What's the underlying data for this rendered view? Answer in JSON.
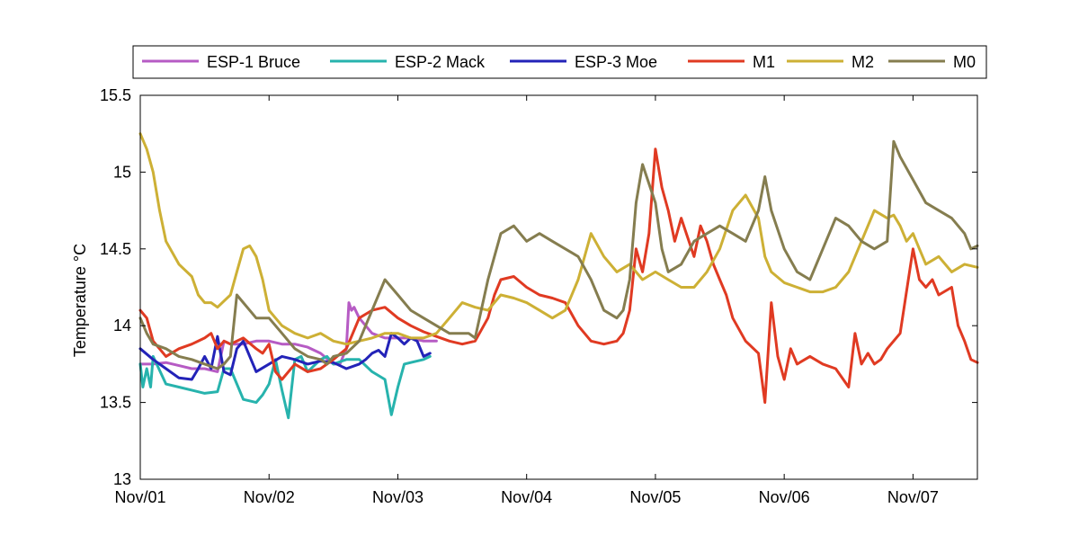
{
  "chart_data": {
    "type": "line",
    "title": "",
    "xlabel": "",
    "ylabel": "Temperature °C",
    "xlim": [
      0,
      6.5
    ],
    "ylim": [
      13,
      15.5
    ],
    "x_ticks": [
      0,
      1,
      2,
      3,
      4,
      5,
      6
    ],
    "x_tick_labels": [
      "Nov/01",
      "Nov/02",
      "Nov/03",
      "Nov/04",
      "Nov/05",
      "Nov/06",
      "Nov/07"
    ],
    "y_ticks": [
      13,
      13.5,
      14,
      14.5,
      15,
      15.5
    ],
    "y_tick_labels": [
      "13",
      "13.5",
      "14",
      "14.5",
      "15",
      "15.5"
    ],
    "grid": false,
    "legend_position": "top-horizontal",
    "series": [
      {
        "name": "ESP-1 Bruce",
        "color": "#b65bc4",
        "x": [
          0.0,
          0.1,
          0.2,
          0.3,
          0.4,
          0.5,
          0.6,
          0.65,
          0.7,
          0.8,
          0.9,
          1.0,
          1.1,
          1.2,
          1.3,
          1.4,
          1.5,
          1.55,
          1.6,
          1.62,
          1.64,
          1.66,
          1.7,
          1.8,
          1.9,
          2.0,
          2.1,
          2.2,
          2.3
        ],
        "y": [
          13.75,
          13.75,
          13.76,
          13.74,
          13.72,
          13.72,
          13.7,
          13.9,
          13.88,
          13.88,
          13.9,
          13.9,
          13.88,
          13.88,
          13.86,
          13.82,
          13.75,
          13.75,
          13.85,
          14.15,
          14.1,
          14.12,
          14.05,
          13.95,
          13.92,
          13.92,
          13.92,
          13.9,
          13.9
        ]
      },
      {
        "name": "ESP-2 Mack",
        "color": "#27b3ad",
        "x": [
          0.0,
          0.02,
          0.05,
          0.08,
          0.1,
          0.2,
          0.3,
          0.4,
          0.5,
          0.6,
          0.65,
          0.7,
          0.8,
          0.9,
          0.95,
          1.0,
          1.05,
          1.1,
          1.15,
          1.2,
          1.25,
          1.3,
          1.4,
          1.45,
          1.5,
          1.6,
          1.7,
          1.8,
          1.9,
          1.95,
          2.0,
          2.05,
          2.1,
          2.2,
          2.25
        ],
        "y": [
          13.75,
          13.6,
          13.72,
          13.6,
          13.8,
          13.62,
          13.6,
          13.58,
          13.56,
          13.57,
          13.72,
          13.72,
          13.52,
          13.5,
          13.55,
          13.62,
          13.78,
          13.58,
          13.4,
          13.78,
          13.8,
          13.7,
          13.78,
          13.8,
          13.75,
          13.78,
          13.78,
          13.7,
          13.65,
          13.42,
          13.6,
          13.75,
          13.76,
          13.78,
          13.8
        ]
      },
      {
        "name": "ESP-3 Moe",
        "color": "#2323b8",
        "x": [
          0.0,
          0.1,
          0.2,
          0.3,
          0.4,
          0.45,
          0.5,
          0.55,
          0.6,
          0.65,
          0.7,
          0.75,
          0.8,
          0.9,
          1.0,
          1.1,
          1.2,
          1.3,
          1.4,
          1.5,
          1.6,
          1.7,
          1.75,
          1.8,
          1.85,
          1.9,
          1.95,
          2.0,
          2.05,
          2.1,
          2.15,
          2.2,
          2.25
        ],
        "y": [
          13.85,
          13.78,
          13.72,
          13.66,
          13.65,
          13.72,
          13.8,
          13.72,
          13.93,
          13.7,
          13.68,
          13.85,
          13.9,
          13.7,
          13.75,
          13.8,
          13.78,
          13.75,
          13.77,
          13.76,
          13.72,
          13.75,
          13.78,
          13.82,
          13.84,
          13.8,
          13.95,
          13.92,
          13.88,
          13.92,
          13.9,
          13.8,
          13.82
        ]
      },
      {
        "name": "M1",
        "color": "#e03a22",
        "x": [
          0.0,
          0.05,
          0.1,
          0.2,
          0.3,
          0.4,
          0.5,
          0.55,
          0.6,
          0.65,
          0.7,
          0.8,
          0.9,
          0.95,
          1.0,
          1.05,
          1.1,
          1.2,
          1.3,
          1.4,
          1.5,
          1.6,
          1.7,
          1.8,
          1.9,
          2.0,
          2.1,
          2.2,
          2.3,
          2.4,
          2.5,
          2.6,
          2.7,
          2.75,
          2.8,
          2.9,
          3.0,
          3.1,
          3.2,
          3.3,
          3.4,
          3.5,
          3.6,
          3.7,
          3.75,
          3.8,
          3.85,
          3.9,
          3.95,
          4.0,
          4.05,
          4.1,
          4.15,
          4.2,
          4.3,
          4.35,
          4.4,
          4.45,
          4.5,
          4.55,
          4.6,
          4.7,
          4.8,
          4.85,
          4.9,
          4.95,
          5.0,
          5.05,
          5.1,
          5.2,
          5.3,
          5.4,
          5.5,
          5.55,
          5.6,
          5.65,
          5.7,
          5.75,
          5.8,
          5.9,
          6.0,
          6.05,
          6.1,
          6.15,
          6.2,
          6.3,
          6.35,
          6.4,
          6.45,
          6.5
        ],
        "y": [
          14.1,
          14.05,
          13.9,
          13.8,
          13.85,
          13.88,
          13.92,
          13.95,
          13.85,
          13.9,
          13.88,
          13.92,
          13.85,
          13.82,
          13.88,
          13.7,
          13.65,
          13.75,
          13.7,
          13.72,
          13.78,
          13.85,
          14.05,
          14.1,
          14.12,
          14.05,
          14.0,
          13.96,
          13.93,
          13.9,
          13.88,
          13.9,
          14.05,
          14.2,
          14.3,
          14.32,
          14.25,
          14.2,
          14.18,
          14.15,
          14.0,
          13.9,
          13.88,
          13.9,
          13.95,
          14.1,
          14.5,
          14.35,
          14.6,
          15.15,
          14.9,
          14.75,
          14.55,
          14.7,
          14.45,
          14.65,
          14.55,
          14.4,
          14.3,
          14.2,
          14.05,
          13.9,
          13.82,
          13.5,
          14.15,
          13.8,
          13.65,
          13.85,
          13.75,
          13.8,
          13.75,
          13.72,
          13.6,
          13.95,
          13.75,
          13.82,
          13.75,
          13.78,
          13.85,
          13.95,
          14.5,
          14.3,
          14.25,
          14.3,
          14.2,
          14.25,
          14.0,
          13.9,
          13.78,
          13.76
        ]
      },
      {
        "name": "M2",
        "color": "#cdb035",
        "x": [
          0.0,
          0.05,
          0.1,
          0.15,
          0.2,
          0.3,
          0.4,
          0.45,
          0.5,
          0.55,
          0.6,
          0.7,
          0.75,
          0.8,
          0.85,
          0.9,
          0.95,
          1.0,
          1.05,
          1.1,
          1.2,
          1.3,
          1.4,
          1.5,
          1.6,
          1.7,
          1.8,
          1.9,
          2.0,
          2.1,
          2.2,
          2.3,
          2.4,
          2.5,
          2.6,
          2.7,
          2.8,
          2.9,
          3.0,
          3.1,
          3.2,
          3.3,
          3.4,
          3.5,
          3.6,
          3.7,
          3.8,
          3.9,
          4.0,
          4.1,
          4.2,
          4.3,
          4.4,
          4.5,
          4.6,
          4.7,
          4.8,
          4.85,
          4.9,
          5.0,
          5.1,
          5.2,
          5.3,
          5.4,
          5.5,
          5.6,
          5.7,
          5.8,
          5.85,
          5.9,
          5.95,
          6.0,
          6.05,
          6.1,
          6.2,
          6.3,
          6.4,
          6.5
        ],
        "y": [
          15.25,
          15.15,
          15.0,
          14.75,
          14.55,
          14.4,
          14.32,
          14.2,
          14.15,
          14.15,
          14.12,
          14.2,
          14.35,
          14.5,
          14.52,
          14.45,
          14.3,
          14.1,
          14.05,
          14.0,
          13.95,
          13.92,
          13.95,
          13.9,
          13.88,
          13.9,
          13.92,
          13.95,
          13.95,
          13.92,
          13.92,
          13.95,
          14.05,
          14.15,
          14.12,
          14.1,
          14.2,
          14.18,
          14.15,
          14.1,
          14.05,
          14.1,
          14.3,
          14.6,
          14.45,
          14.35,
          14.4,
          14.3,
          14.35,
          14.3,
          14.25,
          14.25,
          14.35,
          14.5,
          14.75,
          14.85,
          14.7,
          14.45,
          14.35,
          14.28,
          14.25,
          14.22,
          14.22,
          14.25,
          14.35,
          14.55,
          14.75,
          14.7,
          14.72,
          14.65,
          14.55,
          14.6,
          14.5,
          14.4,
          14.45,
          14.35,
          14.4,
          14.38
        ]
      },
      {
        "name": "M0",
        "color": "#857d4f",
        "x": [
          0.0,
          0.05,
          0.1,
          0.2,
          0.3,
          0.4,
          0.5,
          0.6,
          0.65,
          0.7,
          0.75,
          0.8,
          0.85,
          0.9,
          1.0,
          1.1,
          1.2,
          1.3,
          1.4,
          1.45,
          1.5,
          1.6,
          1.7,
          1.8,
          1.9,
          2.0,
          2.1,
          2.2,
          2.3,
          2.4,
          2.5,
          2.55,
          2.6,
          2.7,
          2.8,
          2.9,
          3.0,
          3.1,
          3.2,
          3.3,
          3.4,
          3.5,
          3.6,
          3.7,
          3.75,
          3.8,
          3.85,
          3.9,
          4.0,
          4.05,
          4.1,
          4.2,
          4.3,
          4.4,
          4.5,
          4.6,
          4.7,
          4.8,
          4.85,
          4.9,
          5.0,
          5.1,
          5.2,
          5.3,
          5.4,
          5.5,
          5.6,
          5.7,
          5.8,
          5.85,
          5.9,
          6.0,
          6.1,
          6.2,
          6.3,
          6.4,
          6.45,
          6.5
        ],
        "y": [
          14.05,
          13.95,
          13.88,
          13.85,
          13.8,
          13.78,
          13.75,
          13.72,
          13.75,
          13.8,
          14.2,
          14.15,
          14.1,
          14.05,
          14.05,
          13.95,
          13.85,
          13.8,
          13.78,
          13.75,
          13.8,
          13.82,
          13.9,
          14.1,
          14.3,
          14.2,
          14.1,
          14.05,
          14.0,
          13.95,
          13.95,
          13.95,
          13.92,
          14.3,
          14.6,
          14.65,
          14.55,
          14.6,
          14.55,
          14.5,
          14.45,
          14.3,
          14.1,
          14.05,
          14.1,
          14.3,
          14.8,
          15.05,
          14.8,
          14.5,
          14.35,
          14.4,
          14.55,
          14.6,
          14.65,
          14.6,
          14.55,
          14.75,
          14.97,
          14.75,
          14.5,
          14.35,
          14.3,
          14.5,
          14.7,
          14.65,
          14.55,
          14.5,
          14.55,
          15.2,
          15.1,
          14.95,
          14.8,
          14.75,
          14.7,
          14.6,
          14.5,
          14.52
        ]
      }
    ]
  }
}
